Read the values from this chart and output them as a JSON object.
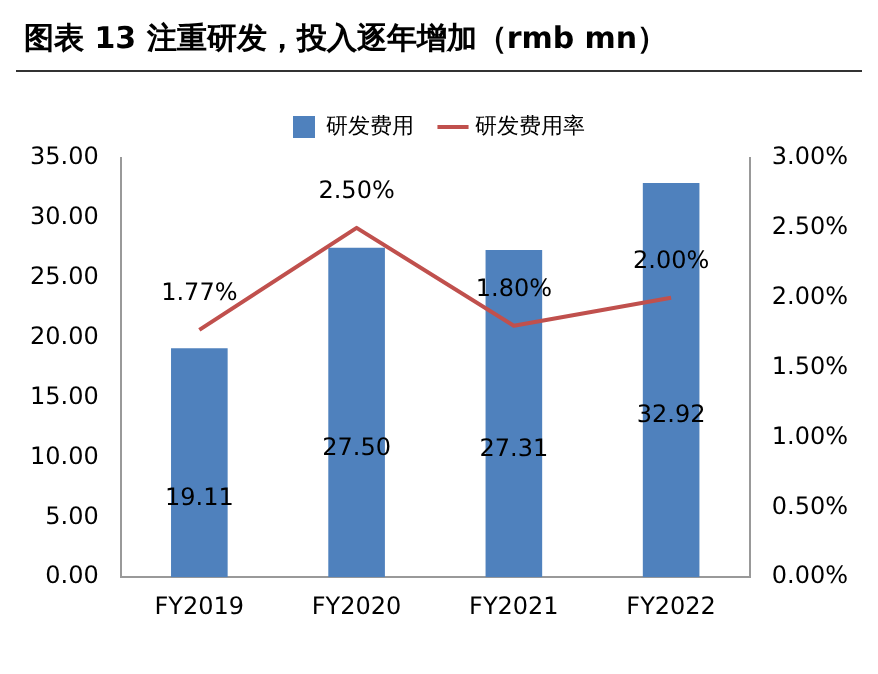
{
  "chart_data": {
    "type": "bar",
    "title": "图表 13  注重研发，投入逐年增加（rmb mn）",
    "categories": [
      "FY2019",
      "FY2020",
      "FY2021",
      "FY2022"
    ],
    "series": [
      {
        "name": "研发费用",
        "color": "#4f81bd",
        "values": [
          19.11,
          27.5,
          27.31,
          32.92
        ],
        "value_labels": [
          "19.11",
          "27.50",
          "27.31",
          "32.92"
        ]
      },
      {
        "name": "研发费用率",
        "type": "line",
        "axis": "y2",
        "color": "#c0504d",
        "values": [
          1.77,
          2.5,
          1.8,
          2.0
        ],
        "value_labels": [
          "1.77%",
          "2.50%",
          "1.80%",
          "2.00%"
        ]
      }
    ],
    "ylim": [
      0,
      35
    ],
    "yticks": [
      {
        "value": 0,
        "label": "0.00"
      },
      {
        "value": 5,
        "label": "5.00"
      },
      {
        "value": 10,
        "label": "10.00"
      },
      {
        "value": 15,
        "label": "15.00"
      },
      {
        "value": 20,
        "label": "20.00"
      },
      {
        "value": 25,
        "label": "25.00"
      },
      {
        "value": 30,
        "label": "30.00"
      },
      {
        "value": 35,
        "label": "35.00"
      }
    ],
    "y2lim": [
      0,
      3
    ],
    "y2ticks": [
      {
        "value": 0,
        "label": "0.00%"
      },
      {
        "value": 0.5,
        "label": "0.50%"
      },
      {
        "value": 1,
        "label": "1.00%"
      },
      {
        "value": 1.5,
        "label": "1.50%"
      },
      {
        "value": 2,
        "label": "2.00%"
      },
      {
        "value": 2.5,
        "label": "2.50%"
      },
      {
        "value": 3,
        "label": "3.00%"
      }
    ],
    "grid": false,
    "legend": "top",
    "marker": "none"
  }
}
